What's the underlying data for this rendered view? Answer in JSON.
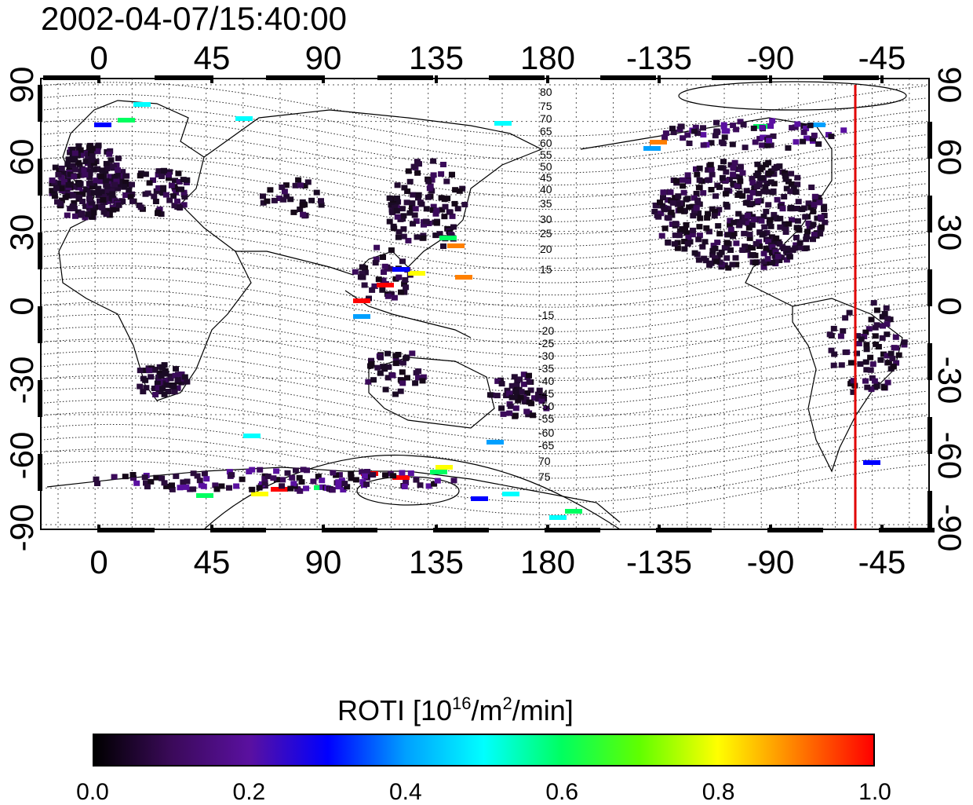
{
  "timestamp": "2002-04-07/15:40:00",
  "colorbar": {
    "title_main": "ROTI  [10",
    "title_sup1": "16",
    "title_mid": "/m",
    "title_sup2": "2",
    "title_end": "/min]",
    "tick_labels": [
      "0.0",
      "0.2",
      "0.4",
      "0.6",
      "0.8",
      "1.0"
    ],
    "stops": [
      "#000000",
      "#3b0a5a",
      "#5a10a0",
      "#0000ff",
      "#00a0ff",
      "#00ffff",
      "#00ff60",
      "#60ff00",
      "#ffff00",
      "#ff8000",
      "#ff0000"
    ]
  },
  "map": {
    "x_tick_labels": [
      "0",
      "45",
      "90",
      "135",
      "180",
      "-135",
      "-90",
      "-45"
    ],
    "y_tick_labels": [
      "90",
      "60",
      "30",
      "0",
      "-30",
      "-60",
      "-90"
    ],
    "contour_labels_north": [
      "80",
      "75",
      "70",
      "65",
      "60",
      "55",
      "50",
      "45",
      "40",
      "35",
      "30",
      "25",
      "20",
      "15"
    ],
    "contour_labels_south": [
      "-15",
      "-20",
      "-25",
      "-30",
      "-35",
      "-40",
      "-45",
      "-50",
      "-55",
      "-60",
      "-65",
      "70",
      "75"
    ],
    "terminator_longitude": -55,
    "frame_color": "#000000",
    "terminator_color": "#e00000"
  }
}
